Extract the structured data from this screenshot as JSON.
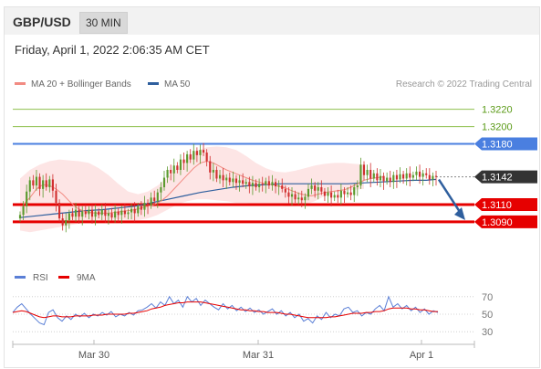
{
  "header": {
    "pair": "GBP/USD",
    "timeframe": "30 MIN"
  },
  "date_line": "Friday, April 1, 2022 2:06:35 AM CET",
  "credit": "Research © 2022 Trading Central",
  "colors": {
    "candle_up": "#5b9a2e",
    "candle_down": "#d12f2f",
    "ma20": "#f28b82",
    "band_fill": "#fde0e0",
    "ma50": "#2f5f9e",
    "resistance_green": "#8fc04e",
    "resistance_blue": "#4a7fe0",
    "support_red": "#e60000",
    "current": "#333333",
    "rsi": "#5a7fd6",
    "ma9": "#e60000"
  },
  "chart_data": [
    {
      "type": "candlestick",
      "legend": [
        {
          "name": "MA 20 + Bollinger Bands",
          "color": "#f28b82"
        },
        {
          "name": "MA 50",
          "color": "#2f5f9e"
        }
      ],
      "x_ticks": [
        "Mar 30",
        "Mar 31",
        "Apr 1"
      ],
      "ylim": [
        1.3072,
        1.3228
      ],
      "levels": [
        {
          "label": "1.3220",
          "value": 1.322,
          "kind": "resistance-minor"
        },
        {
          "label": "1.3200",
          "value": 1.32,
          "kind": "resistance-minor"
        },
        {
          "label": "1.3180",
          "value": 1.318,
          "kind": "resistance-major"
        },
        {
          "label": "1.3142",
          "value": 1.3142,
          "kind": "current"
        },
        {
          "label": "1.3110",
          "value": 1.311,
          "kind": "support"
        },
        {
          "label": "1.3090",
          "value": 1.309,
          "kind": "support"
        }
      ],
      "close": [
        1.3098,
        1.3108,
        1.3125,
        1.3138,
        1.3132,
        1.3142,
        1.3128,
        1.3138,
        1.313,
        1.3139,
        1.3126,
        1.3112,
        1.3094,
        1.3086,
        1.3092,
        1.31,
        1.3096,
        1.3104,
        1.3096,
        1.3102,
        1.3099,
        1.3104,
        1.3096,
        1.3102,
        1.3098,
        1.3104,
        1.3097,
        1.31,
        1.3095,
        1.3102,
        1.3098,
        1.3103,
        1.3099,
        1.3101,
        1.3105,
        1.31,
        1.3108,
        1.3104,
        1.3112,
        1.3109,
        1.3118,
        1.3114,
        1.3124,
        1.313,
        1.3141,
        1.315,
        1.3146,
        1.3155,
        1.315,
        1.3162,
        1.3158,
        1.3168,
        1.3162,
        1.3172,
        1.3167,
        1.3173,
        1.317,
        1.316,
        1.3147,
        1.315,
        1.314,
        1.3144,
        1.3138,
        1.3141,
        1.3136,
        1.314,
        1.3135,
        1.3138,
        1.3134,
        1.3136,
        1.3131,
        1.3135,
        1.313,
        1.3134,
        1.3133,
        1.3137,
        1.3132,
        1.3136,
        1.3131,
        1.3132,
        1.3128,
        1.3124,
        1.3119,
        1.3122,
        1.3116,
        1.3118,
        1.3115,
        1.3119,
        1.3128,
        1.3132,
        1.3126,
        1.313,
        1.3125,
        1.312,
        1.3124,
        1.3118,
        1.3121,
        1.3118,
        1.3126,
        1.3122,
        1.3124,
        1.3121,
        1.313,
        1.3132,
        1.3156,
        1.3144,
        1.315,
        1.314,
        1.3146,
        1.3138,
        1.3143,
        1.3137,
        1.3141,
        1.3136,
        1.3144,
        1.3139,
        1.3145,
        1.314,
        1.3146,
        1.3141,
        1.3144,
        1.3148,
        1.3142,
        1.3146,
        1.3144,
        1.3139,
        1.3143,
        1.3142
      ],
      "ma20": [
        1.311,
        1.3118,
        1.3128,
        1.3133,
        1.3132,
        1.3128,
        1.3122,
        1.3114,
        1.3107,
        1.3103,
        1.3101,
        1.31,
        1.31,
        1.31,
        1.3101,
        1.3102,
        1.3103,
        1.3104,
        1.3106,
        1.3108,
        1.311,
        1.3114,
        1.312,
        1.3128,
        1.3136,
        1.3144,
        1.3152,
        1.3158,
        1.316,
        1.3158,
        1.3154,
        1.315,
        1.3147,
        1.3144,
        1.3141,
        1.3138,
        1.3136,
        1.3134,
        1.3133,
        1.3131,
        1.3129,
        1.3126,
        1.3123,
        1.3121,
        1.312,
        1.3122,
        1.3124,
        1.3125,
        1.3126,
        1.3127,
        1.313,
        1.3134,
        1.3138,
        1.314,
        1.3141,
        1.3142
      ],
      "ma20_x": [
        1,
        3,
        5,
        7,
        9,
        11,
        13,
        15,
        17,
        19,
        21,
        23,
        25,
        27,
        29,
        31,
        33,
        35,
        37,
        39,
        41,
        43,
        45,
        47,
        49,
        51,
        53,
        55,
        57,
        59,
        61,
        63,
        65,
        67,
        69,
        71,
        73,
        75,
        77,
        79,
        81,
        83,
        85,
        87,
        89,
        91,
        93,
        95,
        97,
        99,
        101,
        103,
        105,
        107,
        109,
        111
      ],
      "upper_band": [
        1.314,
        1.315,
        1.3156,
        1.316,
        1.3162,
        1.3161,
        1.316,
        1.3158,
        1.3152,
        1.3144,
        1.3134,
        1.3125,
        1.3122,
        1.3125,
        1.3132,
        1.3141,
        1.3152,
        1.3164,
        1.3172,
        1.3176,
        1.3177,
        1.3176,
        1.3173,
        1.3166,
        1.3158,
        1.3152,
        1.3148,
        1.3147,
        1.3149,
        1.3152,
        1.3155,
        1.3157,
        1.3158,
        1.3158,
        1.3157,
        1.3156
      ],
      "lower_band": [
        1.308,
        1.3078,
        1.308,
        1.3082,
        1.3084,
        1.3086,
        1.3088,
        1.309,
        1.3091,
        1.3092,
        1.3093,
        1.3092,
        1.3092,
        1.3094,
        1.3098,
        1.3104,
        1.311,
        1.3114,
        1.3116,
        1.3116,
        1.3115,
        1.3114,
        1.3112,
        1.3112,
        1.3111,
        1.311,
        1.3109,
        1.3108,
        1.3108,
        1.311,
        1.3114,
        1.312,
        1.3124,
        1.3126,
        1.3127,
        1.3128
      ],
      "band_x": [
        0,
        3,
        6,
        9,
        12,
        15,
        18,
        21,
        24,
        27,
        30,
        33,
        36,
        39,
        42,
        45,
        48,
        51,
        54,
        57,
        60,
        63,
        66,
        69,
        72,
        75,
        78,
        81,
        84,
        87,
        90,
        93,
        96,
        99,
        102,
        105
      ],
      "ma50": [
        1.3095,
        1.3097,
        1.3099,
        1.3101,
        1.3103,
        1.3104,
        1.3106,
        1.3108,
        1.3112,
        1.3116,
        1.312,
        1.3124,
        1.3127,
        1.313,
        1.3132,
        1.3133,
        1.3134,
        1.3134,
        1.3134,
        1.3134,
        1.3134,
        1.3135,
        1.3136,
        1.3137,
        1.3138,
        1.3138,
        1.3139
      ],
      "ma50_x": [
        0,
        5,
        10,
        15,
        20,
        25,
        30,
        35,
        40,
        45,
        50,
        55,
        60,
        65,
        70,
        75,
        80,
        85,
        90,
        95,
        100,
        105,
        110,
        115,
        120,
        124,
        127
      ]
    },
    {
      "type": "line",
      "legend": [
        {
          "name": "RSI",
          "color": "#5a7fd6"
        },
        {
          "name": "9MA",
          "color": "#e60000"
        }
      ],
      "y_ticks": [
        "70",
        "50",
        "30"
      ],
      "ylim": [
        25,
        75
      ],
      "rsi": [
        52,
        58,
        62,
        56,
        50,
        45,
        40,
        38,
        52,
        55,
        46,
        42,
        48,
        44,
        50,
        47,
        51,
        46,
        50,
        48,
        52,
        49,
        53,
        47,
        50,
        48,
        52,
        49,
        54,
        55,
        58,
        62,
        57,
        64,
        60,
        70,
        62,
        66,
        58,
        70,
        64,
        68,
        60,
        66,
        62,
        58,
        55,
        62,
        56,
        60,
        54,
        58,
        53,
        57,
        52,
        55,
        50,
        53,
        56,
        50,
        54,
        48,
        52,
        46,
        50,
        42,
        45,
        40,
        48,
        44,
        52,
        46,
        50,
        48,
        56,
        58,
        52,
        54,
        48,
        52,
        50,
        56,
        60,
        54,
        70,
        58,
        62,
        56,
        60,
        54,
        58,
        52,
        56,
        50,
        54,
        52
      ],
      "ma9": [
        52,
        53,
        54,
        53,
        51,
        49,
        47,
        46,
        47,
        48,
        48,
        47,
        47,
        47,
        48,
        48,
        48,
        48,
        49,
        49,
        49,
        50,
        50,
        50,
        50,
        50,
        51,
        51,
        52,
        53,
        54,
        56,
        57,
        58,
        60,
        61,
        62,
        63,
        63,
        64,
        64,
        64,
        64,
        63,
        62,
        61,
        60,
        59,
        58,
        57,
        56,
        55,
        55,
        54,
        54,
        53,
        53,
        52,
        52,
        52,
        51,
        50,
        50,
        49,
        48,
        47,
        46,
        46,
        46,
        46,
        46,
        47,
        47,
        48,
        49,
        50,
        51,
        51,
        51,
        52,
        52,
        53,
        53,
        54,
        56,
        57,
        57,
        57,
        57,
        56,
        56,
        55,
        55,
        54,
        53,
        53
      ]
    }
  ]
}
